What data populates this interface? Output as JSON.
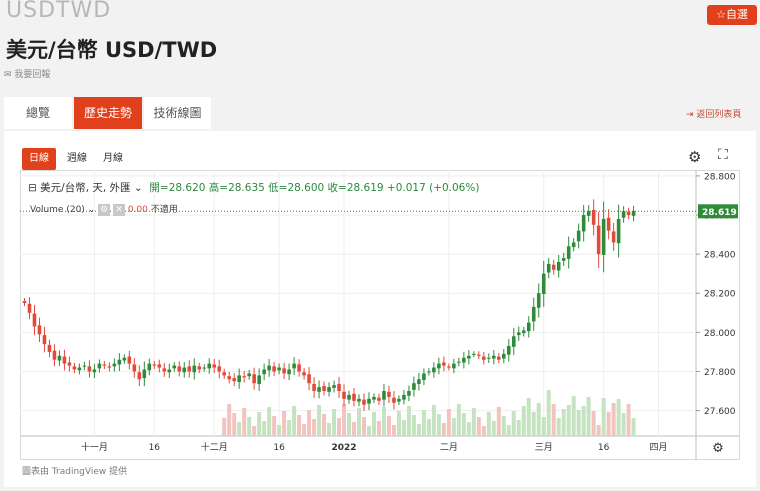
{
  "header": {
    "ticker": "USDTWD",
    "title": "美元/台幣 USD/TWD",
    "message_link": "我要回報",
    "watch_button": "自選"
  },
  "tabs": [
    {
      "label": "總覽",
      "active": false
    },
    {
      "label": "歷史走勢",
      "active": true
    },
    {
      "label": "技術線圖",
      "active": false
    }
  ],
  "back_link": "返回列表頁",
  "range_tabs": [
    {
      "label": "日線",
      "active": true
    },
    {
      "label": "週線",
      "active": false
    },
    {
      "label": "月線",
      "active": false
    }
  ],
  "legend": {
    "symbol": "美元/台幣, 天, 外匯",
    "ohlc": "開=28.620  高=28.635  低=28.600  收=28.619  +0.017 (+0.06%)",
    "volume_label": "Volume (20)",
    "volume_value": "0.00",
    "volume_note": "不適用"
  },
  "credit": "圖表由 TradingView 提供",
  "colors": {
    "accent": "#e0401c",
    "up": "#2e8b3a",
    "down": "#e24a3b",
    "vol_up": "#c5e3c0",
    "vol_down": "#f2c4bf"
  },
  "chart_data": {
    "type": "candlestick",
    "ylim": [
      27.47,
      28.82
    ],
    "y_ticks": [
      "28.800",
      "28.600",
      "28.400",
      "28.200",
      "28.000",
      "27.800",
      "27.600"
    ],
    "y_tick_values": [
      28.8,
      28.6,
      28.4,
      28.2,
      28.0,
      27.8,
      27.6
    ],
    "x_ticks": [
      "十一月",
      "16",
      "十二月",
      "16",
      "2022",
      "二月",
      "三月",
      "16",
      "四月"
    ],
    "x_tick_index": [
      14,
      26,
      38,
      51,
      64,
      85,
      104,
      116,
      127
    ],
    "n_slots": 135,
    "last_price": "28.619",
    "last_price_value": 28.619,
    "closes": [
      28.15,
      28.1,
      28.03,
      27.99,
      27.94,
      27.9,
      27.86,
      27.88,
      27.84,
      27.83,
      27.81,
      27.82,
      27.83,
      27.8,
      27.81,
      27.84,
      27.83,
      27.82,
      27.84,
      27.86,
      27.87,
      27.84,
      27.8,
      27.76,
      27.81,
      27.84,
      27.83,
      27.82,
      27.8,
      27.81,
      27.83,
      27.8,
      27.82,
      27.8,
      27.83,
      27.81,
      27.82,
      27.84,
      27.82,
      27.8,
      27.78,
      27.76,
      27.75,
      27.78,
      27.77,
      27.79,
      27.74,
      27.78,
      27.81,
      27.83,
      27.8,
      27.82,
      27.79,
      27.81,
      27.84,
      27.8,
      27.78,
      27.74,
      27.7,
      27.72,
      27.7,
      27.72,
      27.73,
      27.7,
      27.66,
      27.68,
      27.65,
      27.66,
      27.63,
      27.66,
      27.67,
      27.65,
      27.7,
      27.67,
      27.64,
      27.66,
      27.68,
      27.7,
      27.74,
      27.76,
      27.79,
      27.8,
      27.82,
      27.84,
      27.83,
      27.82,
      27.84,
      27.85,
      27.87,
      27.88,
      27.89,
      27.88,
      27.86,
      27.87,
      27.88,
      27.86,
      27.89,
      27.93,
      27.98,
      28.0,
      28.01,
      28.05,
      28.13,
      28.2,
      28.3,
      28.35,
      28.32,
      28.36,
      28.38,
      28.44,
      28.46,
      28.52,
      28.6,
      28.62,
      28.55,
      28.4,
      28.58,
      28.52,
      28.46,
      28.58,
      28.62,
      28.6,
      28.62
    ]
  }
}
